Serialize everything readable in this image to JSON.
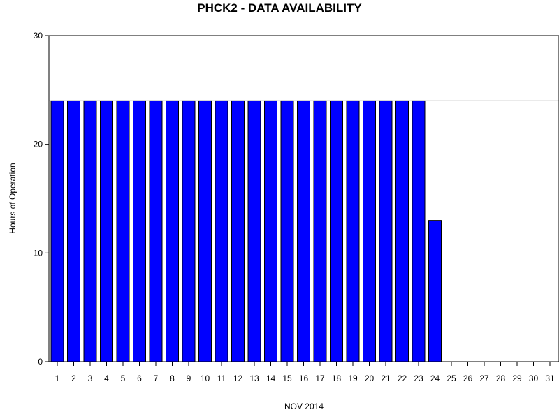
{
  "chart_data": {
    "type": "bar",
    "title": "PHCK2 - DATA AVAILABILITY",
    "xlabel": "NOV 2014",
    "ylabel": "Hours of Operation",
    "ylim": [
      0,
      30
    ],
    "yticks": [
      0,
      10,
      20,
      30
    ],
    "reference_line": 24,
    "grid": false,
    "bar_color": "#0000ff",
    "categories": [
      "1",
      "2",
      "3",
      "4",
      "5",
      "6",
      "7",
      "8",
      "9",
      "10",
      "11",
      "12",
      "13",
      "14",
      "15",
      "16",
      "17",
      "18",
      "19",
      "20",
      "21",
      "22",
      "23",
      "24",
      "25",
      "26",
      "27",
      "28",
      "29",
      "30",
      "31"
    ],
    "values": [
      24,
      24,
      24,
      24,
      24,
      24,
      24,
      24,
      24,
      24,
      24,
      24,
      24,
      24,
      24,
      24,
      24,
      24,
      24,
      24,
      24,
      24,
      24,
      13,
      0,
      0,
      0,
      0,
      0,
      0,
      0
    ]
  }
}
